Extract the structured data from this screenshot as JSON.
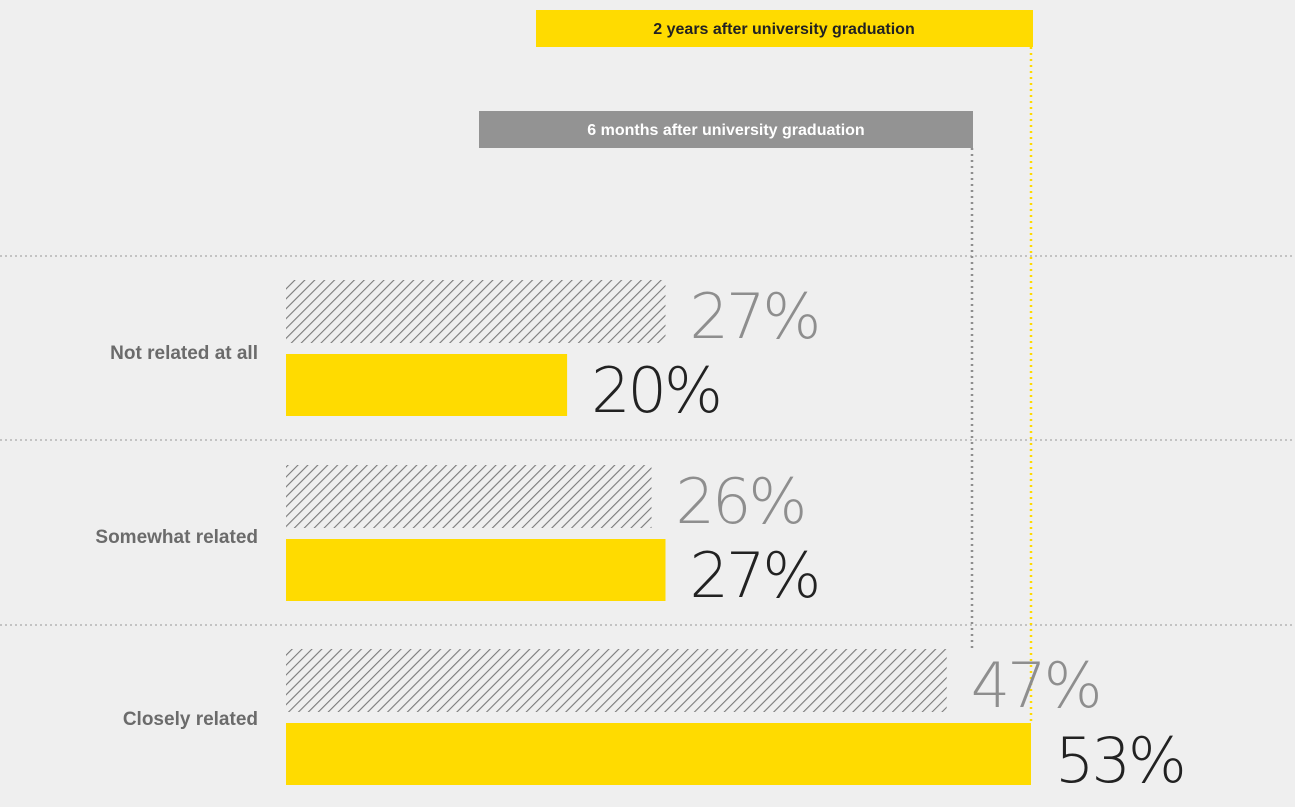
{
  "chart_data": {
    "type": "bar",
    "orientation": "horizontal",
    "categories": [
      "Not related at all",
      "Somewhat related",
      "Closely related"
    ],
    "series": [
      {
        "name": "6 months after university graduation",
        "values": [
          27,
          26,
          47
        ],
        "value_labels": [
          "27%",
          "26%",
          "47%"
        ],
        "color": "#9a9a9a",
        "pattern": "diagonal-hatch"
      },
      {
        "name": "2 years after university graduation",
        "values": [
          20,
          27,
          53
        ],
        "value_labels": [
          "20%",
          "27%",
          "53%"
        ],
        "color": "#ffdb00",
        "pattern": "solid"
      }
    ],
    "xlim": [
      0,
      53
    ],
    "grid": false
  },
  "colors": {
    "background": "#efefef",
    "category_text": "#6b6b6b",
    "value_text_6m": "#8e8e8e",
    "value_text_2y": "#222222",
    "hatch": "#7a7a7a",
    "yellow": "#ffdb00",
    "gray_legend": "#939393",
    "divider": "#a9a9a9"
  }
}
